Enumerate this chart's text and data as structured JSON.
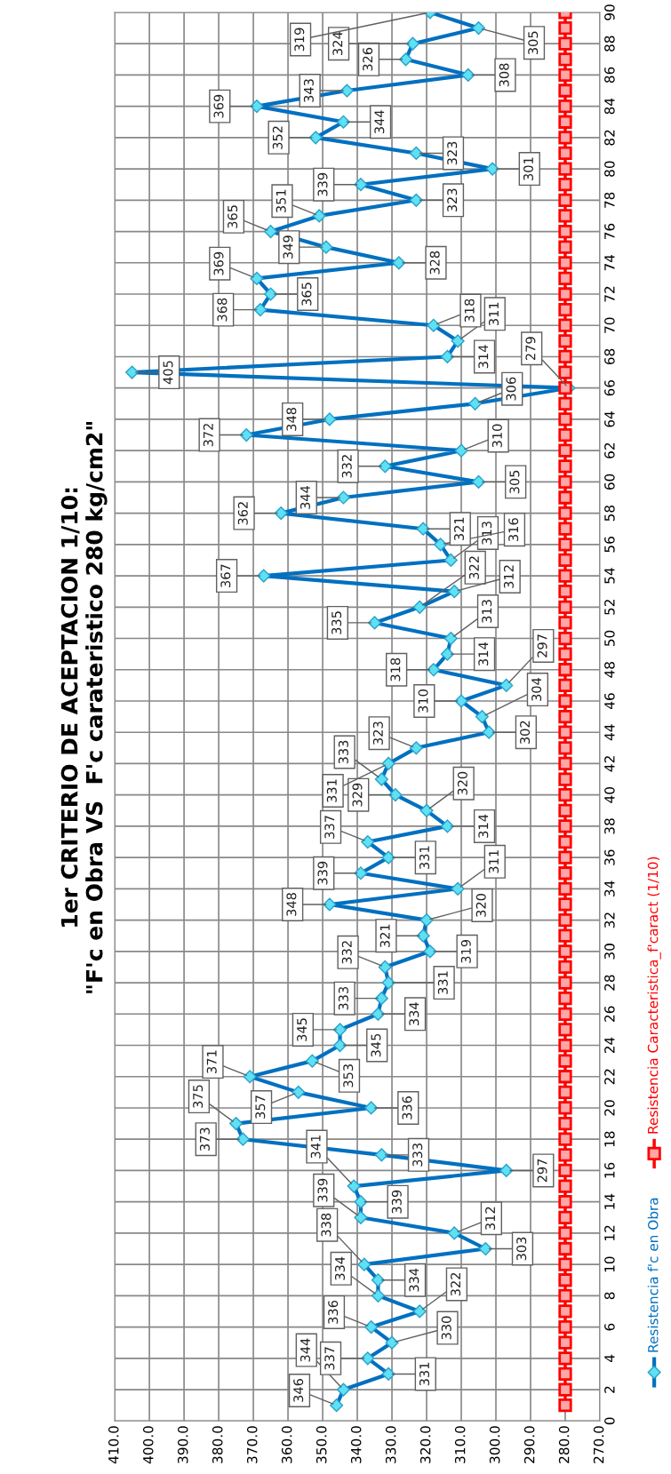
{
  "chart_data": {
    "type": "line",
    "title": "1er CRITERIO DE ACEPTACION 1/10:\n\"F'c en Obra VS  F'c carateristico 280 kg/cm2\"",
    "series": [
      {
        "name": "Resistencia f'c en Obra",
        "color": "#0070c0",
        "marker": "diamond",
        "x": [
          346,
          344,
          331,
          337,
          330,
          336,
          322,
          334,
          334,
          338,
          303,
          312,
          339,
          339,
          341,
          297,
          333,
          373,
          375,
          336,
          357,
          371,
          353,
          345,
          345,
          334,
          333,
          331,
          332,
          319,
          321,
          320,
          348,
          311,
          339,
          331,
          337,
          314,
          320,
          329,
          333,
          331,
          323,
          302,
          304,
          310,
          297,
          318,
          314,
          313,
          335,
          322,
          312,
          367,
          313,
          316,
          321,
          362,
          344,
          305,
          332,
          310,
          372,
          348,
          306,
          279,
          405,
          314,
          311,
          318,
          368,
          365,
          369,
          328,
          349,
          365,
          351,
          323,
          339,
          301,
          323,
          352,
          344,
          369,
          343,
          308,
          326,
          324,
          305,
          319
        ],
        "values": [
          1,
          2,
          3,
          4,
          5,
          6,
          7,
          8,
          9,
          10,
          11,
          12,
          13,
          14,
          15,
          16,
          17,
          18,
          19,
          20,
          21,
          22,
          23,
          24,
          25,
          26,
          27,
          28,
          29,
          30,
          31,
          32,
          33,
          34,
          35,
          36,
          37,
          38,
          39,
          40,
          41,
          42,
          43,
          44,
          45,
          46,
          47,
          48,
          49,
          50,
          51,
          52,
          53,
          54,
          55,
          56,
          57,
          58,
          59,
          60,
          61,
          62,
          63,
          64,
          65,
          66,
          67,
          68,
          69,
          70,
          71,
          72,
          73,
          74,
          75,
          76,
          77,
          78,
          79,
          80,
          81,
          82,
          83,
          84,
          85,
          86,
          87,
          88,
          89,
          90
        ]
      },
      {
        "name": "Resistencia Caracteristica_f'caract (1/10)",
        "color": "#ff0000",
        "marker": "square",
        "x": [
          280,
          280,
          280,
          280,
          280,
          280,
          280,
          280,
          280,
          280,
          280,
          280,
          280,
          280,
          280,
          280,
          280,
          280,
          280,
          280,
          280,
          280,
          280,
          280,
          280,
          280,
          280,
          280,
          280,
          280,
          280,
          280,
          280,
          280,
          280,
          280,
          280,
          280,
          280,
          280,
          280,
          280,
          280,
          280,
          280,
          280,
          280,
          280,
          280,
          280,
          280,
          280,
          280,
          280,
          280,
          280,
          280,
          280,
          280,
          280,
          280,
          280,
          280,
          280,
          280,
          280,
          280,
          280,
          280,
          280,
          280,
          280,
          280,
          280,
          280,
          280,
          280,
          280,
          280,
          280,
          280,
          280,
          280,
          280,
          280,
          280,
          280,
          280,
          280,
          280
        ],
        "values": [
          1,
          2,
          3,
          4,
          5,
          6,
          7,
          8,
          9,
          10,
          11,
          12,
          13,
          14,
          15,
          16,
          17,
          18,
          19,
          20,
          21,
          22,
          23,
          24,
          25,
          26,
          27,
          28,
          29,
          30,
          31,
          32,
          33,
          34,
          35,
          36,
          37,
          38,
          39,
          40,
          41,
          42,
          43,
          44,
          45,
          46,
          47,
          48,
          49,
          50,
          51,
          52,
          53,
          54,
          55,
          56,
          57,
          58,
          59,
          60,
          61,
          62,
          63,
          64,
          65,
          66,
          67,
          68,
          69,
          70,
          71,
          72,
          73,
          74,
          75,
          76,
          77,
          78,
          79,
          80,
          81,
          82,
          83,
          84,
          85,
          86,
          87,
          88,
          89,
          90
        ]
      }
    ],
    "annotations": [
      {
        "text": "346",
        "x": 346,
        "y": 1
      },
      {
        "text": "344",
        "x": 344,
        "y": 2
      },
      {
        "text": "331",
        "x": 331,
        "y": 3
      },
      {
        "text": "337",
        "x": 337,
        "y": 4
      },
      {
        "text": "330",
        "x": 330,
        "y": 5
      },
      {
        "text": "336",
        "x": 336,
        "y": 6
      },
      {
        "text": "322",
        "x": 322,
        "y": 7
      },
      {
        "text": "334",
        "x": 334,
        "y": 8
      },
      {
        "text": "334",
        "x": 334,
        "y": 9
      },
      {
        "text": "338",
        "x": 338,
        "y": 10
      },
      {
        "text": "303",
        "x": 303,
        "y": 11
      },
      {
        "text": "312",
        "x": 312,
        "y": 12
      },
      {
        "text": "339",
        "x": 339,
        "y": 13
      },
      {
        "text": "339",
        "x": 339,
        "y": 14
      },
      {
        "text": "341",
        "x": 341,
        "y": 15
      },
      {
        "text": "297",
        "x": 297,
        "y": 16
      },
      {
        "text": "333",
        "x": 333,
        "y": 17
      },
      {
        "text": "373",
        "x": 373,
        "y": 18
      },
      {
        "text": "375",
        "x": 375,
        "y": 19
      },
      {
        "text": "336",
        "x": 336,
        "y": 20
      },
      {
        "text": "357",
        "x": 357,
        "y": 21
      },
      {
        "text": "371",
        "x": 371,
        "y": 22
      },
      {
        "text": "353",
        "x": 353,
        "y": 23
      },
      {
        "text": "345",
        "x": 345,
        "y": 24
      },
      {
        "text": "345",
        "x": 345,
        "y": 25
      },
      {
        "text": "334",
        "x": 334,
        "y": 26
      },
      {
        "text": "333",
        "x": 333,
        "y": 27
      },
      {
        "text": "331",
        "x": 331,
        "y": 28
      },
      {
        "text": "332",
        "x": 332,
        "y": 29
      },
      {
        "text": "319",
        "x": 319,
        "y": 30
      },
      {
        "text": "321",
        "x": 321,
        "y": 31
      },
      {
        "text": "320",
        "x": 320,
        "y": 32
      },
      {
        "text": "348",
        "x": 348,
        "y": 33
      },
      {
        "text": "311",
        "x": 311,
        "y": 34
      },
      {
        "text": "339",
        "x": 339,
        "y": 35
      },
      {
        "text": "331",
        "x": 331,
        "y": 36
      },
      {
        "text": "337",
        "x": 337,
        "y": 37
      },
      {
        "text": "314",
        "x": 314,
        "y": 38
      },
      {
        "text": "320",
        "x": 320,
        "y": 39
      },
      {
        "text": "329",
        "x": 329,
        "y": 40
      },
      {
        "text": "333",
        "x": 333,
        "y": 41
      },
      {
        "text": "331",
        "x": 331,
        "y": 42
      },
      {
        "text": "323",
        "x": 323,
        "y": 43
      },
      {
        "text": "302",
        "x": 302,
        "y": 44
      },
      {
        "text": "304",
        "x": 304,
        "y": 45
      },
      {
        "text": "310",
        "x": 310,
        "y": 46
      },
      {
        "text": "297",
        "x": 297,
        "y": 47
      },
      {
        "text": "318",
        "x": 318,
        "y": 48
      },
      {
        "text": "314",
        "x": 314,
        "y": 49
      },
      {
        "text": "313",
        "x": 313,
        "y": 50
      },
      {
        "text": "335",
        "x": 335,
        "y": 51
      },
      {
        "text": "322",
        "x": 322,
        "y": 52
      },
      {
        "text": "312",
        "x": 312,
        "y": 53
      },
      {
        "text": "367",
        "x": 367,
        "y": 54
      },
      {
        "text": "313",
        "x": 313,
        "y": 55
      },
      {
        "text": "316",
        "x": 316,
        "y": 56
      },
      {
        "text": "321",
        "x": 321,
        "y": 57
      },
      {
        "text": "362",
        "x": 362,
        "y": 58
      },
      {
        "text": "344",
        "x": 344,
        "y": 59
      },
      {
        "text": "305",
        "x": 305,
        "y": 60
      },
      {
        "text": "332",
        "x": 332,
        "y": 61
      },
      {
        "text": "310",
        "x": 310,
        "y": 62
      },
      {
        "text": "372",
        "x": 372,
        "y": 63
      },
      {
        "text": "348",
        "x": 348,
        "y": 64
      },
      {
        "text": "306",
        "x": 306,
        "y": 65
      },
      {
        "text": "279",
        "x": 279,
        "y": 66
      },
      {
        "text": "405",
        "x": 405,
        "y": 67
      },
      {
        "text": "314",
        "x": 314,
        "y": 68
      },
      {
        "text": "311",
        "x": 311,
        "y": 69
      },
      {
        "text": "318",
        "x": 318,
        "y": 70
      },
      {
        "text": "368",
        "x": 368,
        "y": 71
      },
      {
        "text": "365",
        "x": 365,
        "y": 72
      },
      {
        "text": "369",
        "x": 369,
        "y": 73
      },
      {
        "text": "328",
        "x": 328,
        "y": 74
      },
      {
        "text": "349",
        "x": 349,
        "y": 75
      },
      {
        "text": "365",
        "x": 365,
        "y": 76
      },
      {
        "text": "351",
        "x": 351,
        "y": 77
      },
      {
        "text": "323",
        "x": 323,
        "y": 78
      },
      {
        "text": "339",
        "x": 339,
        "y": 79
      },
      {
        "text": "301",
        "x": 301,
        "y": 80
      },
      {
        "text": "323",
        "x": 323,
        "y": 81
      },
      {
        "text": "352",
        "x": 352,
        "y": 82
      },
      {
        "text": "344",
        "x": 344,
        "y": 83
      },
      {
        "text": "369",
        "x": 369,
        "y": 84
      },
      {
        "text": "343",
        "x": 343,
        "y": 85
      },
      {
        "text": "308",
        "x": 308,
        "y": 86
      },
      {
        "text": "326",
        "x": 326,
        "y": 87
      },
      {
        "text": "324",
        "x": 324,
        "y": 88
      },
      {
        "text": "305",
        "x": 305,
        "y": 89
      },
      {
        "text": "319",
        "x": 319,
        "y": 90
      }
    ],
    "xlim": [
      410,
      270
    ],
    "xticks": [
      {
        "value": 410,
        "label": "410.0"
      },
      {
        "value": 400,
        "label": "400.0"
      },
      {
        "value": 390,
        "label": "390.0"
      },
      {
        "value": 380,
        "label": "380.0"
      },
      {
        "value": 370,
        "label": "370.0"
      },
      {
        "value": 360,
        "label": "360.0"
      },
      {
        "value": 350,
        "label": "350.0"
      },
      {
        "value": 340,
        "label": "340.0"
      },
      {
        "value": 330,
        "label": "330.0"
      },
      {
        "value": 320,
        "label": "320.0"
      },
      {
        "value": 310,
        "label": "310.0"
      },
      {
        "value": 300,
        "label": "300.0"
      },
      {
        "value": 290,
        "label": "290.0"
      },
      {
        "value": 280,
        "label": "280.0"
      },
      {
        "value": 270,
        "label": "270.0"
      }
    ],
    "ylim": [
      0,
      90
    ],
    "yticks": [
      0,
      2,
      4,
      6,
      8,
      10,
      12,
      14,
      16,
      18,
      20,
      22,
      24,
      26,
      28,
      30,
      32,
      34,
      36,
      38,
      40,
      42,
      44,
      46,
      48,
      50,
      52,
      54,
      56,
      58,
      60,
      62,
      64,
      66,
      68,
      70,
      72,
      74,
      76,
      78,
      80,
      82,
      84,
      86,
      88,
      90
    ],
    "grid": true,
    "legend": "right",
    "line_style": "solid"
  }
}
